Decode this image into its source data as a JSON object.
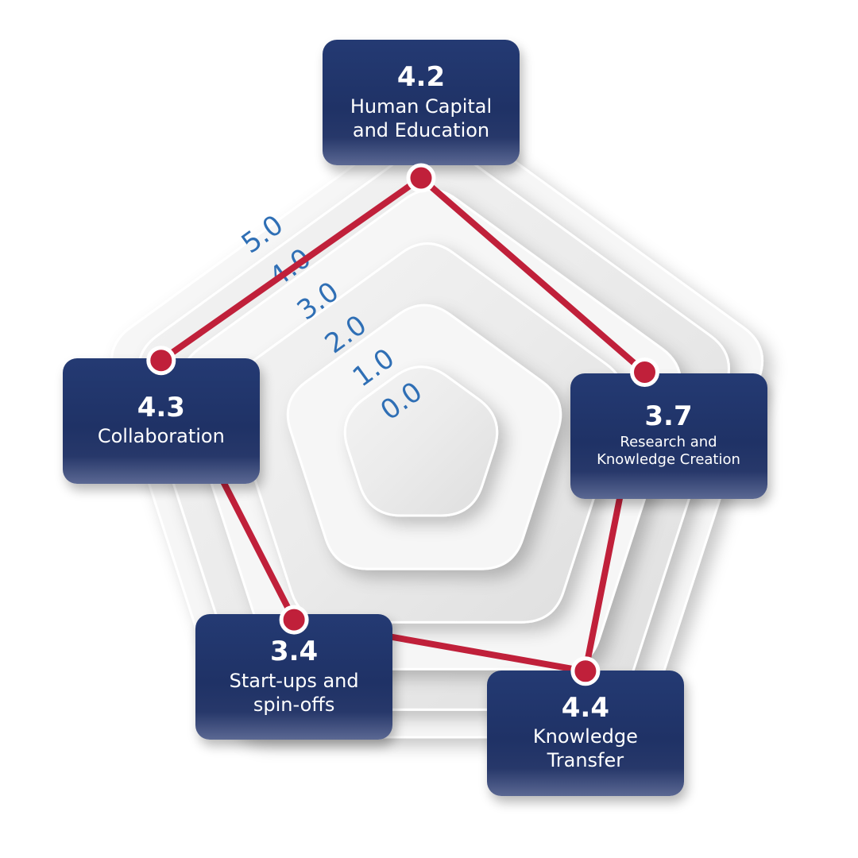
{
  "chart_data": {
    "type": "radar",
    "scale_labels": [
      "0.0",
      "1.0",
      "2.0",
      "3.0",
      "4.0",
      "5.0"
    ],
    "range": [
      0,
      5
    ],
    "axes": [
      {
        "label": "Human Capital\nand Education",
        "value": 4.2,
        "value_text": "4.2"
      },
      {
        "label": "Research and\nKnowledge Creation",
        "value": 3.7,
        "value_text": "3.7"
      },
      {
        "label": "Knowledge\nTransfer",
        "value": 4.4,
        "value_text": "4.4"
      },
      {
        "label": "Start-ups and\nspin-offs",
        "value": 3.4,
        "value_text": "3.4"
      },
      {
        "label": "Collaboration",
        "value": 4.3,
        "value_text": "4.3"
      }
    ],
    "colors": {
      "line": "#c0203a",
      "point": "#c0203a",
      "card": "#1f3266",
      "scale_text": "#2f6fb5"
    }
  }
}
